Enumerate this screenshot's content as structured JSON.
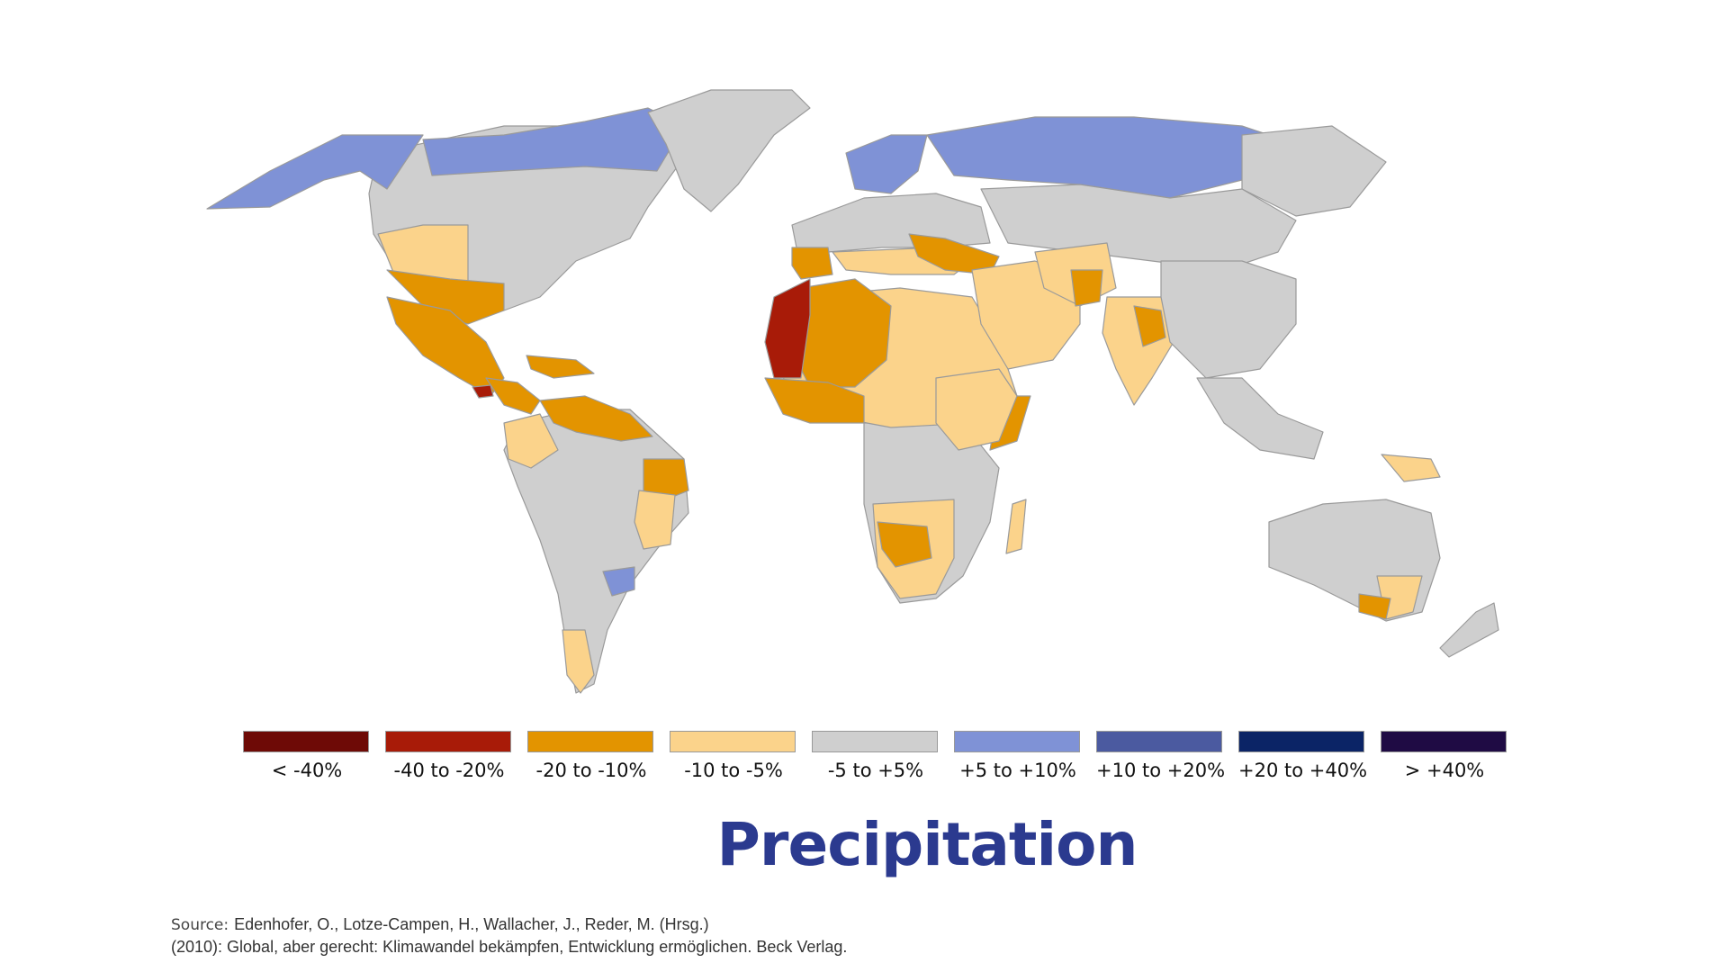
{
  "colors": {
    "neg40": "#6e0a06",
    "neg20": "#a81b08",
    "neg10": "#e39400",
    "neg5": "#fbd38b",
    "neutral": "#cfcfcf",
    "pos5": "#7f92d6",
    "pos10": "#4b5aa0",
    "pos20": "#0b2466",
    "pos40": "#1f0b44",
    "border": "#9a9a9a",
    "title": "#2b3a8f"
  },
  "legend": [
    {
      "label": "< -40%",
      "color_key": "neg40"
    },
    {
      "label": "-40 to -20%",
      "color_key": "neg20"
    },
    {
      "label": "-20 to -10%",
      "color_key": "neg10"
    },
    {
      "label": "-10 to -5%",
      "color_key": "neg5"
    },
    {
      "label": "-5 to +5%",
      "color_key": "neutral"
    },
    {
      "label": "+5 to +10%",
      "color_key": "pos5"
    },
    {
      "label": "+10 to +20%",
      "color_key": "pos10"
    },
    {
      "label": "+20 to +40%",
      "color_key": "pos20"
    },
    {
      "label": "> +40%",
      "color_key": "pos40"
    }
  ],
  "title": "Precipitation",
  "source": {
    "label": "Source:",
    "line1": "Edenhofer, O., Lotze-Campen, H., Wallacher, J., Reder, M. (Hrsg.)",
    "line2": "(2010): Global, aber gerecht: Klimawandel bekämpfen, Entwicklung ermöglichen. Beck Verlag."
  }
}
